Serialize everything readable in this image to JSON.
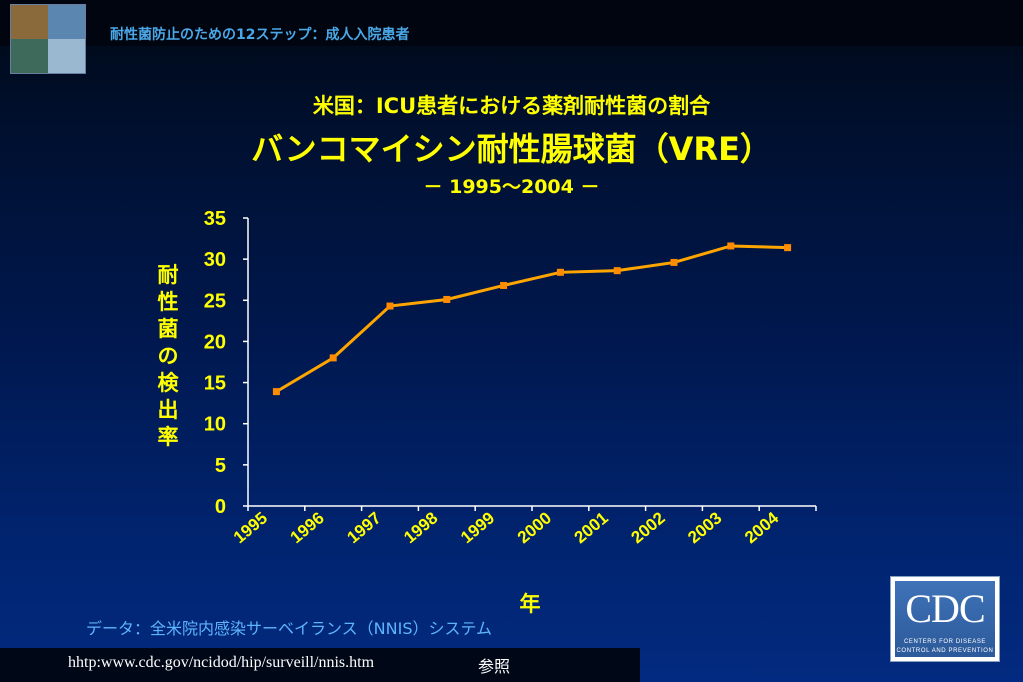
{
  "header": {
    "title": "耐性菌防止のための12ステップ：成人入院患者"
  },
  "slide": {
    "subtitle": "米国：ICU患者における薬剤耐性菌の割合",
    "title": "バンコマイシン耐性腸球菌（VRE）",
    "date_range": "－ 1995～2004 －"
  },
  "y_axis_title_chars": [
    "耐",
    "性",
    "菌",
    "の",
    "検",
    "出",
    "率"
  ],
  "x_axis_title": "年",
  "data_source": "データ：全米院内感染サーベイランス（NNIS）システム",
  "footer": {
    "url": "hhtp:www.cdc.gov/ncidod/hip/surveill/nnis.htm",
    "ref": "参照"
  },
  "cdc_logo": {
    "letters": "CDC",
    "tagline1": "CENTERS FOR DISEASE",
    "tagline2": "CONTROL AND PREVENTION"
  },
  "colors": {
    "line": "#ffa500",
    "marker": "#ff8c00",
    "text": "#ffff00",
    "axis": "#ffffff"
  },
  "chart_data": {
    "type": "line",
    "title": "バンコマイシン耐性腸球菌（VRE）",
    "xlabel": "年",
    "ylabel": "耐性菌の検出率",
    "categories": [
      "1995",
      "1996",
      "1997",
      "1998",
      "1999",
      "2000",
      "2001",
      "2002",
      "2003",
      "2004"
    ],
    "series": [
      {
        "name": "VRE",
        "values": [
          13.9,
          18.0,
          24.3,
          25.1,
          26.8,
          28.4,
          28.6,
          29.6,
          31.6,
          31.4
        ]
      }
    ],
    "ylim": [
      0,
      35
    ],
    "yticks": [
      0,
      5,
      10,
      15,
      20,
      25,
      30,
      35
    ],
    "grid": false,
    "legend": "none"
  }
}
